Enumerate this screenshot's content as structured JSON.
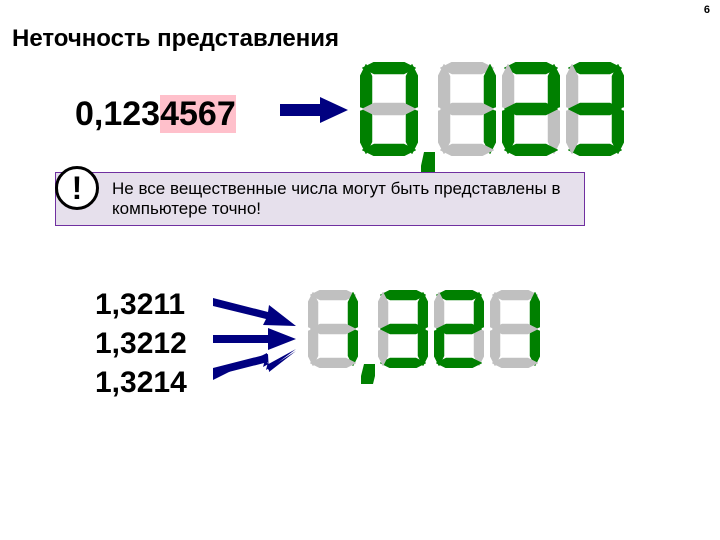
{
  "slide_number": "6",
  "title": "Неточность представления",
  "number1_prefix": "0,123",
  "number1_highlight": "4567",
  "callout_text": "Не все вещественные числа могут быть представлены в компьютере точно!",
  "numbers_group": [
    "1,3211",
    "1,3212",
    "1,3214"
  ],
  "display1_digits": [
    "0",
    "1",
    "2",
    "3"
  ],
  "display2_digits": [
    "1",
    "3",
    "2",
    "1"
  ],
  "colors": {
    "segment_on": "#008000",
    "segment_off": "#c0c0c0",
    "arrow": "#000080",
    "highlight_bg": "#ffc0cb",
    "callout_bg": "#e6e0ec",
    "callout_border": "#7030a0"
  }
}
